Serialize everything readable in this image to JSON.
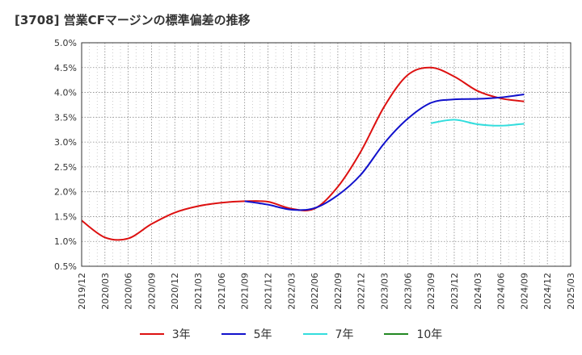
{
  "chart_data": {
    "type": "line",
    "title": "[3708]  営業CFマージンの標準偏差の推移",
    "xlabel": "",
    "ylabel": "",
    "ylim": [
      0.5,
      5.0
    ],
    "grid": true,
    "legend_position": "bottom",
    "x_ticks": [
      "2019/12",
      "2020/03",
      "2020/06",
      "2020/09",
      "2020/12",
      "2021/03",
      "2021/06",
      "2021/09",
      "2021/12",
      "2022/03",
      "2022/06",
      "2022/09",
      "2022/12",
      "2023/03",
      "2023/06",
      "2023/09",
      "2023/12",
      "2024/03",
      "2024/06",
      "2024/09",
      "2024/12",
      "2025/03"
    ],
    "y_ticks": [
      "0.5%",
      "1.0%",
      "1.5%",
      "2.0%",
      "2.5%",
      "3.0%",
      "3.5%",
      "4.0%",
      "4.5%",
      "5.0%"
    ],
    "y_tick_values": [
      0.5,
      1.0,
      1.5,
      2.0,
      2.5,
      3.0,
      3.5,
      4.0,
      4.5,
      5.0
    ],
    "series": [
      {
        "name": "3年",
        "color": "#dd1111",
        "points": [
          [
            "2019/12",
            1.42
          ],
          [
            "2020/03",
            1.08
          ],
          [
            "2020/06",
            1.06
          ],
          [
            "2020/09",
            1.35
          ],
          [
            "2020/12",
            1.58
          ],
          [
            "2021/03",
            1.71
          ],
          [
            "2021/06",
            1.78
          ],
          [
            "2021/09",
            1.81
          ],
          [
            "2021/12",
            1.8
          ],
          [
            "2022/03",
            1.66
          ],
          [
            "2022/06",
            1.66
          ],
          [
            "2022/09",
            2.1
          ],
          [
            "2022/12",
            2.82
          ],
          [
            "2023/03",
            3.72
          ],
          [
            "2023/06",
            4.35
          ],
          [
            "2023/09",
            4.5
          ],
          [
            "2023/12",
            4.32
          ],
          [
            "2024/03",
            4.03
          ],
          [
            "2024/06",
            3.88
          ],
          [
            "2024/09",
            3.82
          ]
        ]
      },
      {
        "name": "5年",
        "color": "#1111cc",
        "points": [
          [
            "2021/09",
            1.81
          ],
          [
            "2021/12",
            1.74
          ],
          [
            "2022/03",
            1.64
          ],
          [
            "2022/06",
            1.67
          ],
          [
            "2022/09",
            1.93
          ],
          [
            "2022/12",
            2.35
          ],
          [
            "2023/03",
            2.98
          ],
          [
            "2023/06",
            3.47
          ],
          [
            "2023/09",
            3.79
          ],
          [
            "2023/12",
            3.86
          ],
          [
            "2024/03",
            3.87
          ],
          [
            "2024/06",
            3.9
          ],
          [
            "2024/09",
            3.96
          ]
        ]
      },
      {
        "name": "7年",
        "color": "#33dddd",
        "points": [
          [
            "2023/09",
            3.38
          ],
          [
            "2023/12",
            3.45
          ],
          [
            "2024/03",
            3.36
          ],
          [
            "2024/06",
            3.33
          ],
          [
            "2024/09",
            3.37
          ]
        ]
      },
      {
        "name": "10年",
        "color": "#228822",
        "points": []
      }
    ]
  }
}
